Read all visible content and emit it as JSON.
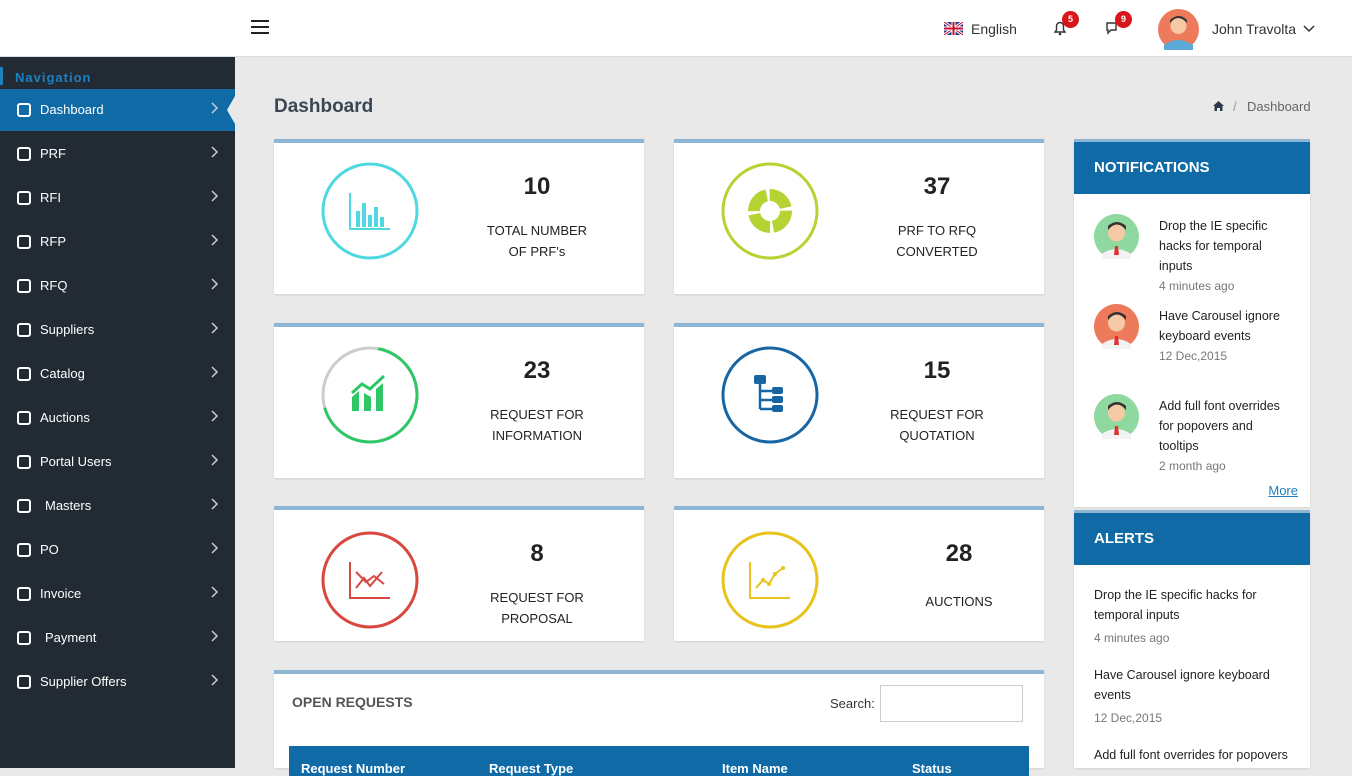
{
  "header": {
    "language": "English",
    "notification_count": "5",
    "message_count": "9",
    "user_name": "John Travolta"
  },
  "sidebar": {
    "heading": "Navigation",
    "items": [
      "Dashboard",
      "PRF",
      "RFI",
      "RFP",
      "RFQ",
      "Suppliers",
      "Catalog",
      "Auctions",
      "Portal Users",
      "Masters",
      "PO",
      "Invoice",
      "Payment",
      "Supplier Offers"
    ]
  },
  "page": {
    "title": "Dashboard",
    "breadcrumb": "Dashboard"
  },
  "stats": [
    {
      "value": "10",
      "label": [
        "TOTAL NUMBER",
        "OF PRF's"
      ]
    },
    {
      "value": "37",
      "label": [
        "PRF TO RFQ",
        "CONVERTED"
      ]
    },
    {
      "value": "23",
      "label": [
        "REQUEST FOR",
        "INFORMATION"
      ]
    },
    {
      "value": "15",
      "label": [
        "REQUEST FOR",
        "QUOTATION"
      ]
    },
    {
      "value": "8",
      "label": [
        "REQUEST FOR",
        "PROPOSAL"
      ]
    },
    {
      "value": "28",
      "label": [
        "AUCTIONS"
      ]
    }
  ],
  "notifications": {
    "title": "NOTIFICATIONS",
    "items": [
      {
        "text": "Drop the IE specific hacks for temporal inputs",
        "time": "4 minutes ago"
      },
      {
        "text": "Have Carousel ignore keyboard events",
        "time": "12 Dec,2015"
      },
      {
        "text": "Add full font overrides for popovers and tooltips",
        "time": "2 month ago"
      }
    ],
    "more": "More"
  },
  "alerts": {
    "title": "ALERTS",
    "items": [
      {
        "text": "Drop the IE specific hacks for temporal inputs",
        "time": "4 minutes ago"
      },
      {
        "text": "Have Carousel ignore keyboard events",
        "time": "12 Dec,2015"
      },
      {
        "text": "Add full font overrides for popovers",
        "time": ""
      }
    ]
  },
  "open_requests": {
    "title": "OPEN REQUESTS",
    "search_label": "Search:",
    "columns": [
      "Request Number",
      "Request Type",
      "Item Name",
      "Status"
    ]
  }
}
